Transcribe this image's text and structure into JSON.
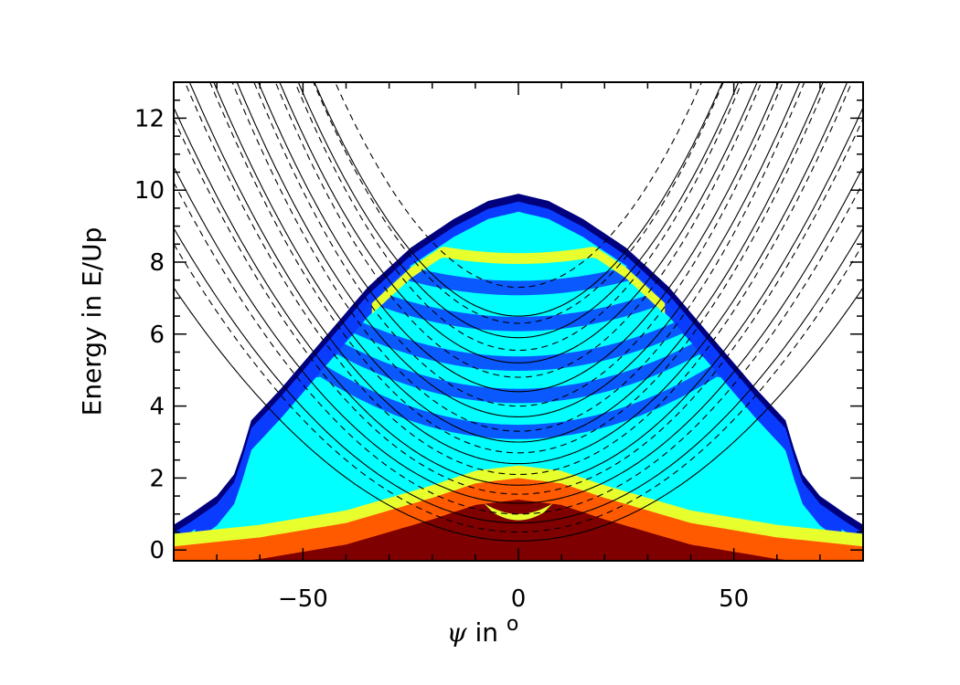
{
  "chart_data": {
    "type": "heatmap",
    "xlabel_symbol": "ψ",
    "xlabel_text": " in ",
    "xlabel_unit": "o",
    "ylabel": "Energy in E/Up",
    "xlim": [
      -80,
      80
    ],
    "ylim": [
      -0.3,
      13
    ],
    "xticks": [
      -50,
      0,
      50
    ],
    "yticks": [
      0,
      2,
      4,
      6,
      8,
      10,
      12
    ],
    "grid": false,
    "colors": {
      "level1": "#00007f",
      "level2": "#0a3cff",
      "level3": "#00ffff",
      "level4": "#e8ff2e",
      "level5": "#ff5a00",
      "level6": "#7f0000"
    },
    "envelope": [
      [
        -80,
        0.7
      ],
      [
        -76,
        1.0
      ],
      [
        -70,
        1.5
      ],
      [
        -66,
        2.1
      ],
      [
        -64,
        2.8
      ],
      [
        -62,
        3.6
      ],
      [
        -55,
        4.5
      ],
      [
        -45,
        5.9
      ],
      [
        -35,
        7.3
      ],
      [
        -25,
        8.4
      ],
      [
        -15,
        9.2
      ],
      [
        -7,
        9.7
      ],
      [
        0,
        9.9
      ],
      [
        7,
        9.7
      ],
      [
        15,
        9.2
      ],
      [
        25,
        8.4
      ],
      [
        35,
        7.3
      ],
      [
        45,
        5.9
      ],
      [
        55,
        4.5
      ],
      [
        62,
        3.6
      ],
      [
        64,
        2.8
      ],
      [
        66,
        2.1
      ],
      [
        70,
        1.5
      ],
      [
        76,
        1.0
      ],
      [
        80,
        0.7
      ]
    ],
    "solid_curve_minima": [
      0.25,
      0.75,
      1.3,
      1.8,
      2.4,
      3.0,
      3.7,
      4.4,
      5.2,
      5.9,
      6.5
    ],
    "dashed_curve_minima": [
      0.5,
      1.0,
      1.55,
      2.1,
      2.7,
      3.3,
      4.0,
      4.8,
      5.55,
      6.3,
      7.3
    ],
    "hot_band_edges": [
      [
        -80,
        0.45
      ],
      [
        -60,
        0.7
      ],
      [
        -40,
        1.1
      ],
      [
        -20,
        1.8
      ],
      [
        -10,
        2.2
      ],
      [
        0,
        2.35
      ],
      [
        10,
        2.2
      ],
      [
        20,
        1.8
      ],
      [
        40,
        1.1
      ],
      [
        60,
        0.7
      ],
      [
        80,
        0.45
      ]
    ]
  }
}
